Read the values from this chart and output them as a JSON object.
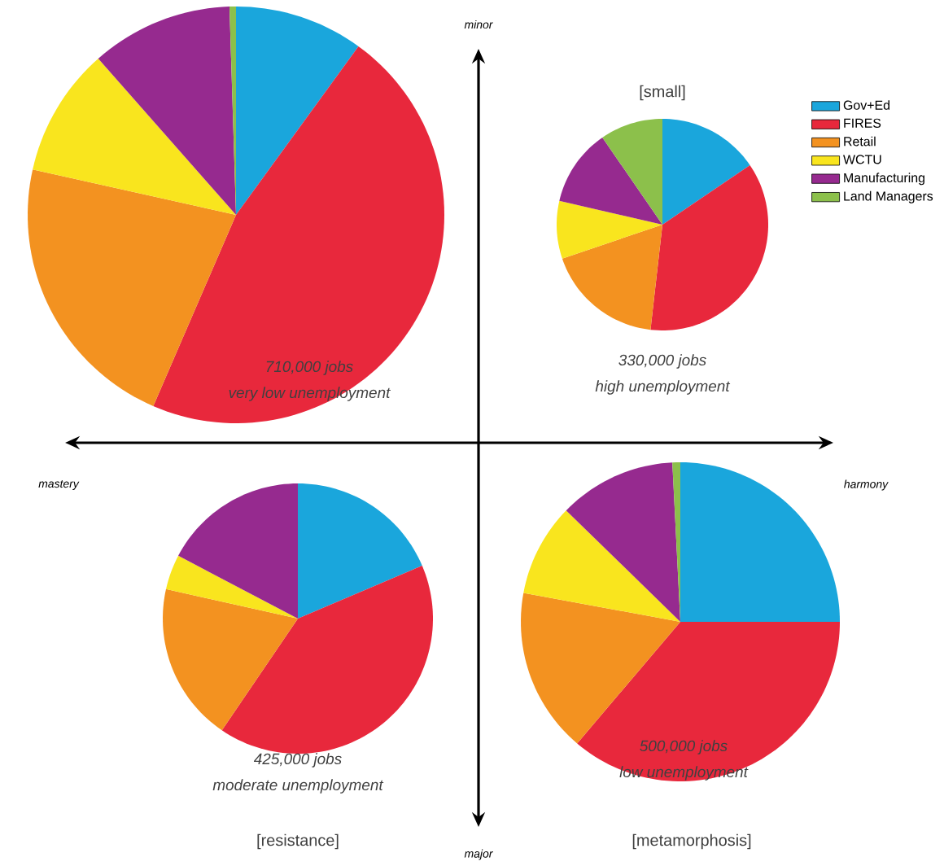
{
  "chart_data": [
    {
      "type": "pie",
      "categories": [
        null,
        null,
        null,
        null,
        null,
        null
      ],
      "values": [
        10,
        46.5,
        22,
        10,
        11,
        0.5
      ],
      "colors": [
        "#1aa6dc",
        "#e8283c",
        "#f39220",
        "#f9e51e",
        "#962a8f",
        "#8cc04b"
      ],
      "annotations": [
        "710,000 jobs",
        "very low unemployment"
      ]
    },
    {
      "type": "pie",
      "title": "[small]",
      "categories": [
        "Gov+Ed",
        "FIRES",
        "Retail",
        "WCTU",
        "Manufacturing",
        "Land Managers"
      ],
      "values": [
        15.5,
        36.3,
        18,
        8.8,
        11.8,
        9.6
      ],
      "colors": [
        "#1aa6dc",
        "#e8283c",
        "#f39220",
        "#f9e51e",
        "#962a8f",
        "#8cc04b"
      ],
      "legend": "right",
      "annotations": [
        "330,000 jobs",
        "high unemployment"
      ]
    },
    {
      "type": "pie",
      "title": "[resistance]",
      "categories": [
        null,
        null,
        null,
        null,
        null,
        null
      ],
      "values": [
        18.6,
        40.9,
        19,
        4.2,
        17.3,
        0
      ],
      "colors": [
        "#1aa6dc",
        "#e8283c",
        "#f39220",
        "#f9e51e",
        "#962a8f",
        "#8cc04b"
      ],
      "annotations": [
        "425,000 jobs",
        "moderate unemployment"
      ]
    },
    {
      "type": "pie",
      "title": "[metamorphosis]",
      "categories": [
        null,
        null,
        null,
        null,
        null,
        null
      ],
      "values": [
        25,
        36.2,
        16.7,
        9.4,
        11.9,
        0.8
      ],
      "colors": [
        "#1aa6dc",
        "#e8283c",
        "#f39220",
        "#f9e51e",
        "#962a8f",
        "#8cc04b"
      ],
      "annotations": [
        "500,000 jobs",
        "low unemployment"
      ]
    },
    {
      "type": "other",
      "annotations": [
        "minor",
        "major",
        "mastery",
        "harmony"
      ]
    }
  ]
}
